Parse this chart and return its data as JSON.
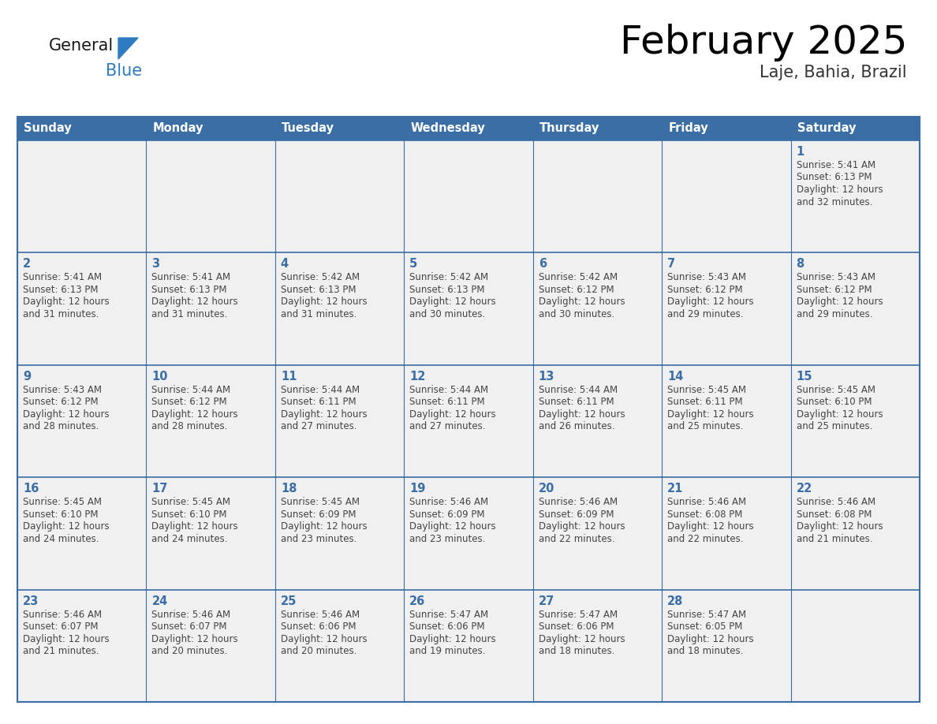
{
  "title": "February 2025",
  "subtitle": "Laje, Bahia, Brazil",
  "header_bg_color": "#3A6EA5",
  "header_text_color": "#FFFFFF",
  "cell_bg_color": "#FFFFFF",
  "grid_color": "#3A6EA5",
  "day_number_color": "#3A6EA5",
  "cell_text_color": "#444444",
  "days_of_week": [
    "Sunday",
    "Monday",
    "Tuesday",
    "Wednesday",
    "Thursday",
    "Friday",
    "Saturday"
  ],
  "logo_general_color": "#1a1a1a",
  "logo_blue_color": "#2E7BBF",
  "calendar_data": [
    [
      null,
      null,
      null,
      null,
      null,
      null,
      {
        "day": 1,
        "sunrise": "5:41 AM",
        "sunset": "6:13 PM",
        "daylight_hours": 12,
        "daylight_minutes": 32
      }
    ],
    [
      {
        "day": 2,
        "sunrise": "5:41 AM",
        "sunset": "6:13 PM",
        "daylight_hours": 12,
        "daylight_minutes": 31
      },
      {
        "day": 3,
        "sunrise": "5:41 AM",
        "sunset": "6:13 PM",
        "daylight_hours": 12,
        "daylight_minutes": 31
      },
      {
        "day": 4,
        "sunrise": "5:42 AM",
        "sunset": "6:13 PM",
        "daylight_hours": 12,
        "daylight_minutes": 31
      },
      {
        "day": 5,
        "sunrise": "5:42 AM",
        "sunset": "6:13 PM",
        "daylight_hours": 12,
        "daylight_minutes": 30
      },
      {
        "day": 6,
        "sunrise": "5:42 AM",
        "sunset": "6:12 PM",
        "daylight_hours": 12,
        "daylight_minutes": 30
      },
      {
        "day": 7,
        "sunrise": "5:43 AM",
        "sunset": "6:12 PM",
        "daylight_hours": 12,
        "daylight_minutes": 29
      },
      {
        "day": 8,
        "sunrise": "5:43 AM",
        "sunset": "6:12 PM",
        "daylight_hours": 12,
        "daylight_minutes": 29
      }
    ],
    [
      {
        "day": 9,
        "sunrise": "5:43 AM",
        "sunset": "6:12 PM",
        "daylight_hours": 12,
        "daylight_minutes": 28
      },
      {
        "day": 10,
        "sunrise": "5:44 AM",
        "sunset": "6:12 PM",
        "daylight_hours": 12,
        "daylight_minutes": 28
      },
      {
        "day": 11,
        "sunrise": "5:44 AM",
        "sunset": "6:11 PM",
        "daylight_hours": 12,
        "daylight_minutes": 27
      },
      {
        "day": 12,
        "sunrise": "5:44 AM",
        "sunset": "6:11 PM",
        "daylight_hours": 12,
        "daylight_minutes": 27
      },
      {
        "day": 13,
        "sunrise": "5:44 AM",
        "sunset": "6:11 PM",
        "daylight_hours": 12,
        "daylight_minutes": 26
      },
      {
        "day": 14,
        "sunrise": "5:45 AM",
        "sunset": "6:11 PM",
        "daylight_hours": 12,
        "daylight_minutes": 25
      },
      {
        "day": 15,
        "sunrise": "5:45 AM",
        "sunset": "6:10 PM",
        "daylight_hours": 12,
        "daylight_minutes": 25
      }
    ],
    [
      {
        "day": 16,
        "sunrise": "5:45 AM",
        "sunset": "6:10 PM",
        "daylight_hours": 12,
        "daylight_minutes": 24
      },
      {
        "day": 17,
        "sunrise": "5:45 AM",
        "sunset": "6:10 PM",
        "daylight_hours": 12,
        "daylight_minutes": 24
      },
      {
        "day": 18,
        "sunrise": "5:45 AM",
        "sunset": "6:09 PM",
        "daylight_hours": 12,
        "daylight_minutes": 23
      },
      {
        "day": 19,
        "sunrise": "5:46 AM",
        "sunset": "6:09 PM",
        "daylight_hours": 12,
        "daylight_minutes": 23
      },
      {
        "day": 20,
        "sunrise": "5:46 AM",
        "sunset": "6:09 PM",
        "daylight_hours": 12,
        "daylight_minutes": 22
      },
      {
        "day": 21,
        "sunrise": "5:46 AM",
        "sunset": "6:08 PM",
        "daylight_hours": 12,
        "daylight_minutes": 22
      },
      {
        "day": 22,
        "sunrise": "5:46 AM",
        "sunset": "6:08 PM",
        "daylight_hours": 12,
        "daylight_minutes": 21
      }
    ],
    [
      {
        "day": 23,
        "sunrise": "5:46 AM",
        "sunset": "6:07 PM",
        "daylight_hours": 12,
        "daylight_minutes": 21
      },
      {
        "day": 24,
        "sunrise": "5:46 AM",
        "sunset": "6:07 PM",
        "daylight_hours": 12,
        "daylight_minutes": 20
      },
      {
        "day": 25,
        "sunrise": "5:46 AM",
        "sunset": "6:06 PM",
        "daylight_hours": 12,
        "daylight_minutes": 20
      },
      {
        "day": 26,
        "sunrise": "5:47 AM",
        "sunset": "6:06 PM",
        "daylight_hours": 12,
        "daylight_minutes": 19
      },
      {
        "day": 27,
        "sunrise": "5:47 AM",
        "sunset": "6:06 PM",
        "daylight_hours": 12,
        "daylight_minutes": 18
      },
      {
        "day": 28,
        "sunrise": "5:47 AM",
        "sunset": "6:05 PM",
        "daylight_hours": 12,
        "daylight_minutes": 18
      },
      null
    ]
  ]
}
